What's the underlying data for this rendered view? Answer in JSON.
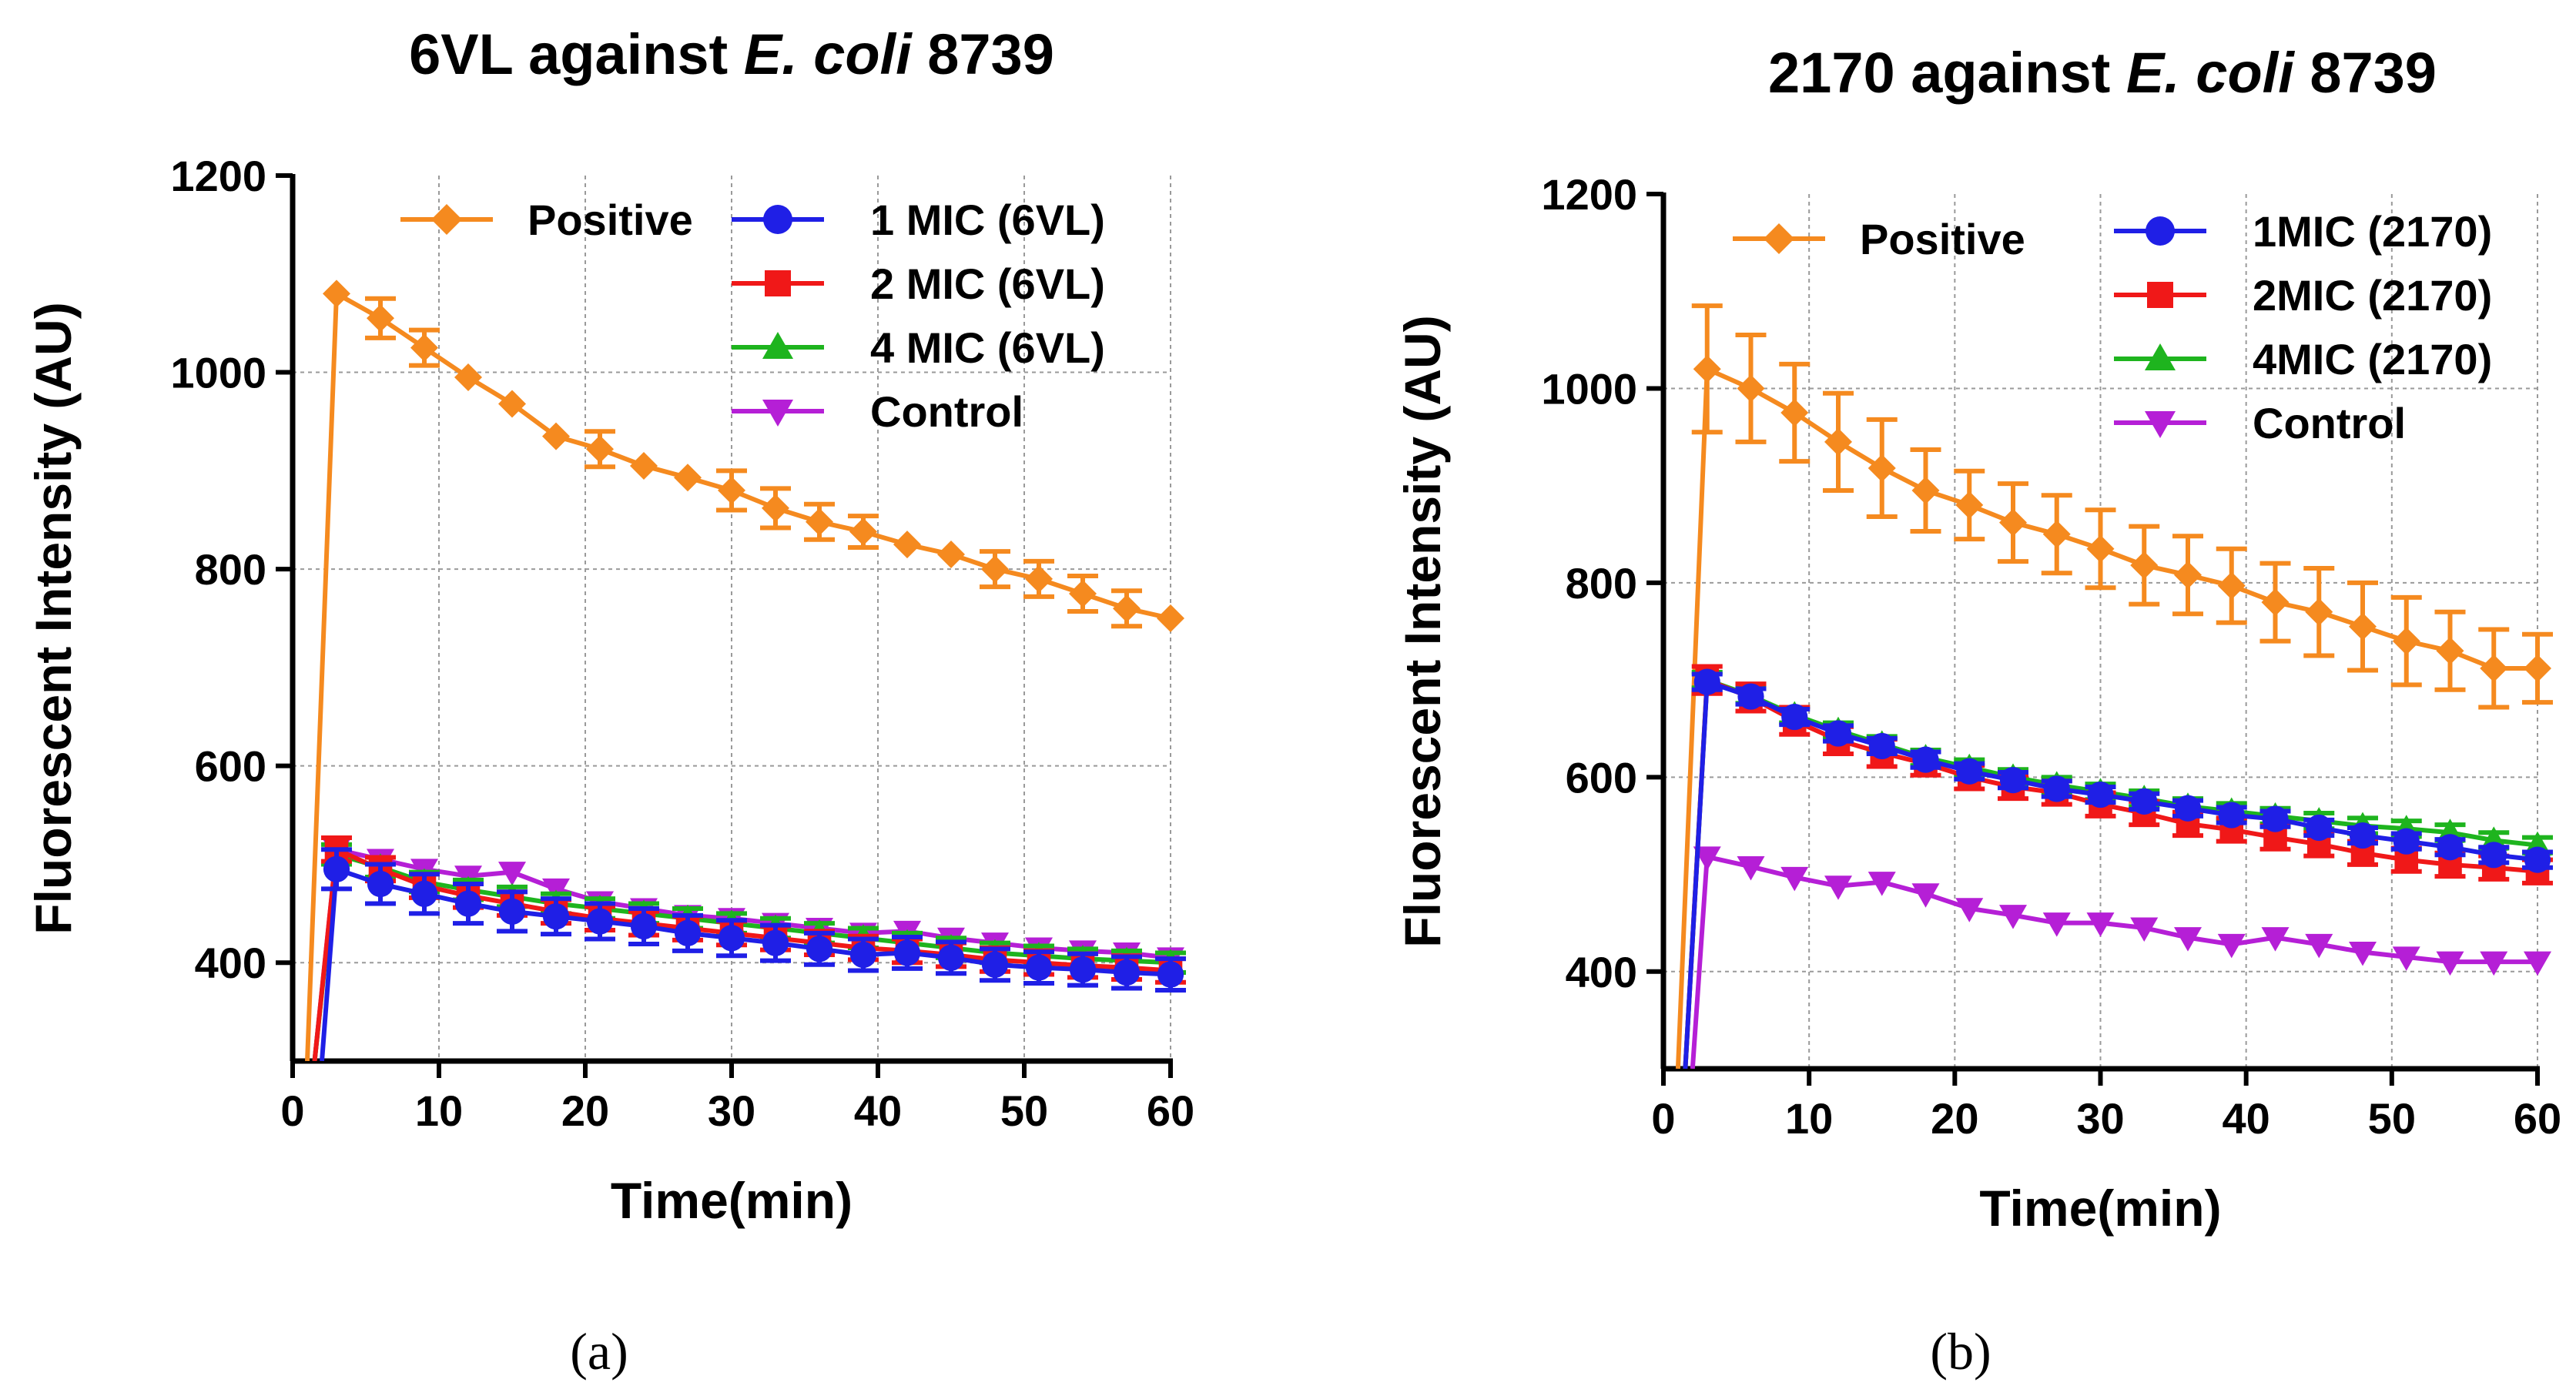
{
  "figure": {
    "panel_labels": [
      "(a)",
      "(b)"
    ]
  },
  "chart_data": [
    {
      "type": "line",
      "title_parts": [
        {
          "text": "6VL against ",
          "italic": false
        },
        {
          "text": "E. coli",
          "italic": true
        },
        {
          "text": " 8739",
          "italic": false
        }
      ],
      "xlabel": "Time(min)",
      "ylabel": "Fluorescent Intensity (AU)",
      "xlim": [
        0,
        60
      ],
      "ylim": [
        300,
        1200
      ],
      "xticks": [
        0,
        10,
        20,
        30,
        40,
        50,
        60
      ],
      "yticks": [
        400,
        600,
        800,
        1000,
        1200
      ],
      "xgrid": [
        10,
        20,
        30,
        40,
        50
      ],
      "ygrid": [
        400,
        600,
        800,
        1000
      ],
      "grid": true,
      "x": [
        3,
        6,
        9,
        12,
        15,
        18,
        21,
        24,
        27,
        30,
        33,
        36,
        39,
        42,
        45,
        48,
        51,
        54,
        57,
        60
      ],
      "series": [
        {
          "name": "Positive",
          "color": "#f58a1f",
          "marker": "diamond",
          "start": [
            1,
            300
          ],
          "values": [
            1080,
            1055,
            1025,
            995,
            968,
            935,
            922,
            905,
            893,
            880,
            862,
            848,
            838,
            825,
            815,
            800,
            790,
            775,
            760,
            750
          ],
          "errors": [
            0,
            20,
            18,
            0,
            0,
            0,
            18,
            0,
            0,
            20,
            20,
            18,
            16,
            0,
            0,
            18,
            18,
            18,
            18,
            0
          ]
        },
        {
          "name": "1 MIC (6VL)",
          "color": "#1f1fe6",
          "marker": "circle",
          "start": [
            2,
            300
          ],
          "values": [
            495,
            480,
            470,
            460,
            452,
            447,
            442,
            437,
            430,
            425,
            420,
            414,
            408,
            410,
            405,
            398,
            395,
            393,
            390,
            388
          ],
          "errors": [
            20,
            20,
            20,
            20,
            20,
            18,
            18,
            18,
            18,
            18,
            18,
            16,
            16,
            16,
            16,
            16,
            16,
            16,
            16,
            16
          ]
        },
        {
          "name": "2 MIC (6VL)",
          "color": "#f01818",
          "marker": "square",
          "start": [
            1.5,
            300
          ],
          "values": [
            515,
            495,
            478,
            468,
            460,
            452,
            445,
            440,
            435,
            430,
            425,
            420,
            415,
            412,
            408,
            403,
            400,
            397,
            395,
            392
          ],
          "errors": [
            12,
            12,
            12,
            12,
            12,
            12,
            12,
            12,
            12,
            12,
            12,
            12,
            12,
            12,
            12,
            12,
            12,
            12,
            12,
            12
          ]
        },
        {
          "name": "4 MIC (6VL)",
          "color": "#1eb41e",
          "marker": "triangle-up",
          "start": [
            1.5,
            300
          ],
          "values": [
            510,
            497,
            482,
            474,
            467,
            460,
            455,
            450,
            445,
            440,
            435,
            430,
            425,
            420,
            415,
            410,
            407,
            404,
            402,
            400
          ],
          "errors": [
            10,
            10,
            10,
            10,
            10,
            10,
            10,
            10,
            10,
            10,
            10,
            10,
            10,
            10,
            10,
            10,
            10,
            10,
            10,
            10
          ]
        },
        {
          "name": "Control",
          "color": "#b51fd6",
          "marker": "triangle-down",
          "start": [
            1.5,
            300
          ],
          "values": [
            515,
            505,
            495,
            488,
            492,
            475,
            462,
            455,
            448,
            445,
            440,
            435,
            430,
            432,
            425,
            420,
            415,
            412,
            410,
            405
          ],
          "errors": [
            0,
            0,
            0,
            0,
            0,
            0,
            0,
            0,
            0,
            0,
            0,
            0,
            0,
            0,
            0,
            0,
            0,
            0,
            0,
            0
          ]
        }
      ]
    },
    {
      "type": "line",
      "title_parts": [
        {
          "text": "2170 against ",
          "italic": false
        },
        {
          "text": "E. coli",
          "italic": true
        },
        {
          "text": " 8739",
          "italic": false
        }
      ],
      "xlabel": "Time(min)",
      "ylabel": "Fluorescent Intensity (AU)",
      "xlim": [
        0,
        60
      ],
      "ylim": [
        300,
        1200
      ],
      "xticks": [
        0,
        10,
        20,
        30,
        40,
        50,
        60
      ],
      "yticks": [
        400,
        600,
        800,
        1000,
        1200
      ],
      "xgrid": [
        10,
        20,
        30,
        40,
        50
      ],
      "ygrid": [
        400,
        600,
        800,
        1000
      ],
      "grid": true,
      "x": [
        3,
        6,
        9,
        12,
        15,
        18,
        21,
        24,
        27,
        30,
        33,
        36,
        39,
        42,
        45,
        48,
        51,
        54,
        57,
        60
      ],
      "series": [
        {
          "name": "Positive",
          "color": "#f58a1f",
          "marker": "diamond",
          "start": [
            1,
            300
          ],
          "values": [
            1020,
            1000,
            975,
            945,
            918,
            895,
            880,
            862,
            850,
            835,
            818,
            808,
            797,
            780,
            770,
            755,
            740,
            730,
            712,
            712
          ],
          "errors": [
            65,
            55,
            50,
            50,
            50,
            42,
            35,
            40,
            40,
            40,
            40,
            40,
            38,
            40,
            45,
            45,
            45,
            40,
            40,
            35
          ]
        },
        {
          "name": "1MIC (2170)",
          "color": "#1f1fe6",
          "marker": "circle",
          "start": [
            1.5,
            300
          ],
          "values": [
            698,
            683,
            662,
            645,
            632,
            618,
            606,
            597,
            588,
            582,
            575,
            568,
            561,
            557,
            548,
            540,
            534,
            528,
            520,
            515
          ],
          "errors": [
            8,
            8,
            8,
            8,
            8,
            8,
            8,
            8,
            8,
            8,
            8,
            8,
            8,
            8,
            8,
            8,
            8,
            8,
            8,
            8
          ]
        },
        {
          "name": "2MIC (2170)",
          "color": "#f01818",
          "marker": "square",
          "start": [
            1.5,
            300
          ],
          "values": [
            700,
            682,
            658,
            638,
            625,
            614,
            600,
            590,
            584,
            572,
            563,
            552,
            546,
            538,
            531,
            522,
            515,
            510,
            507,
            503
          ],
          "errors": [
            14,
            14,
            14,
            14,
            14,
            12,
            12,
            12,
            12,
            12,
            12,
            12,
            12,
            12,
            12,
            12,
            12,
            12,
            12,
            12
          ]
        },
        {
          "name": "4MIC (2170)",
          "color": "#1eb41e",
          "marker": "triangle-up",
          "start": [
            1.5,
            300
          ],
          "values": [
            700,
            684,
            664,
            648,
            634,
            620,
            610,
            600,
            592,
            585,
            578,
            570,
            565,
            560,
            555,
            550,
            547,
            543,
            535,
            530
          ],
          "errors": [
            8,
            8,
            8,
            8,
            8,
            8,
            8,
            8,
            8,
            8,
            8,
            8,
            8,
            8,
            8,
            8,
            8,
            8,
            8,
            8
          ]
        },
        {
          "name": "Control",
          "color": "#b51fd6",
          "marker": "triangle-down",
          "start": [
            2,
            300
          ],
          "values": [
            518,
            508,
            497,
            488,
            492,
            480,
            465,
            458,
            450,
            450,
            445,
            435,
            428,
            435,
            428,
            420,
            415,
            410,
            410,
            410
          ],
          "errors": [
            0,
            0,
            0,
            0,
            0,
            0,
            0,
            0,
            0,
            0,
            0,
            0,
            0,
            0,
            0,
            0,
            0,
            0,
            0,
            0
          ]
        }
      ]
    }
  ]
}
